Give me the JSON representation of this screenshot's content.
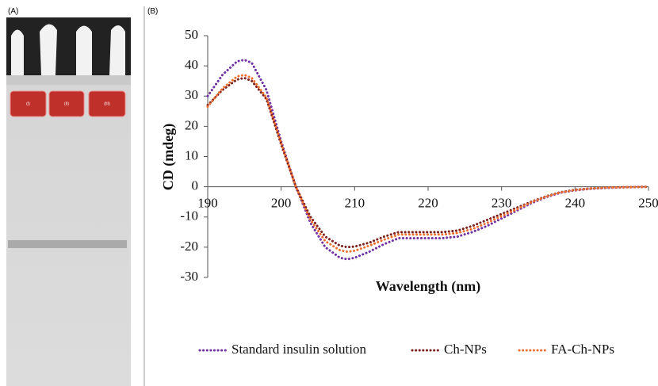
{
  "panel_labels": [
    "(A)",
    "(B)"
  ],
  "gel": {
    "lanes": [
      "(I)",
      "(II)",
      "(III)"
    ]
  },
  "chart_data": {
    "type": "line",
    "x_label": "Wavelength (nm)",
    "y_label": "CD (mdeg)",
    "x": [
      190,
      192,
      194,
      195,
      196,
      198,
      200,
      202,
      204,
      206,
      208,
      209,
      210,
      212,
      214,
      216,
      218,
      220,
      222,
      224,
      226,
      228,
      230,
      232,
      234,
      236,
      238,
      240,
      242,
      244,
      246,
      248,
      250
    ],
    "series": [
      {
        "name": "Standard insulin solution",
        "color": "#7030a0",
        "values": [
          30,
          37,
          41.5,
          42,
          41,
          32,
          15,
          0,
          -12,
          -20,
          -23.5,
          -24,
          -23.5,
          -21.5,
          -19,
          -17,
          -17,
          -17,
          -17,
          -16.5,
          -15,
          -13,
          -10.5,
          -8,
          -5.5,
          -3.5,
          -2,
          -1.2,
          -0.7,
          -0.4,
          -0.2,
          -0.1,
          0
        ]
      },
      {
        "name": "Ch-NPs",
        "color": "#7b1f1f",
        "values": [
          27,
          32,
          35.5,
          36,
          35,
          29,
          14,
          0,
          -10,
          -16.5,
          -19.5,
          -20,
          -19.8,
          -18.5,
          -16.5,
          -15,
          -15,
          -15,
          -15,
          -14.5,
          -13,
          -11,
          -9,
          -7,
          -5,
          -3.2,
          -1.8,
          -1,
          -0.6,
          -0.3,
          -0.2,
          -0.1,
          0
        ]
      },
      {
        "name": "FA-Ch-NPs",
        "color": "#f07030",
        "values": [
          26.5,
          32.5,
          36.5,
          37,
          36,
          29.5,
          14.5,
          0,
          -11,
          -18,
          -21,
          -21.5,
          -21.2,
          -19.5,
          -17.5,
          -15.8,
          -15.8,
          -15.8,
          -15.8,
          -15.3,
          -14,
          -12,
          -9.7,
          -7.5,
          -5.2,
          -3.3,
          -1.9,
          -1.1,
          -0.6,
          -0.3,
          -0.2,
          -0.1,
          0
        ]
      }
    ],
    "xlim": [
      190,
      250
    ],
    "xticks": [
      190,
      200,
      210,
      220,
      230,
      240,
      250
    ],
    "ylim": [
      -30,
      50
    ],
    "yticks": [
      -30,
      -20,
      -10,
      0,
      10,
      20,
      30,
      40,
      50
    ],
    "legend": "bottom"
  }
}
